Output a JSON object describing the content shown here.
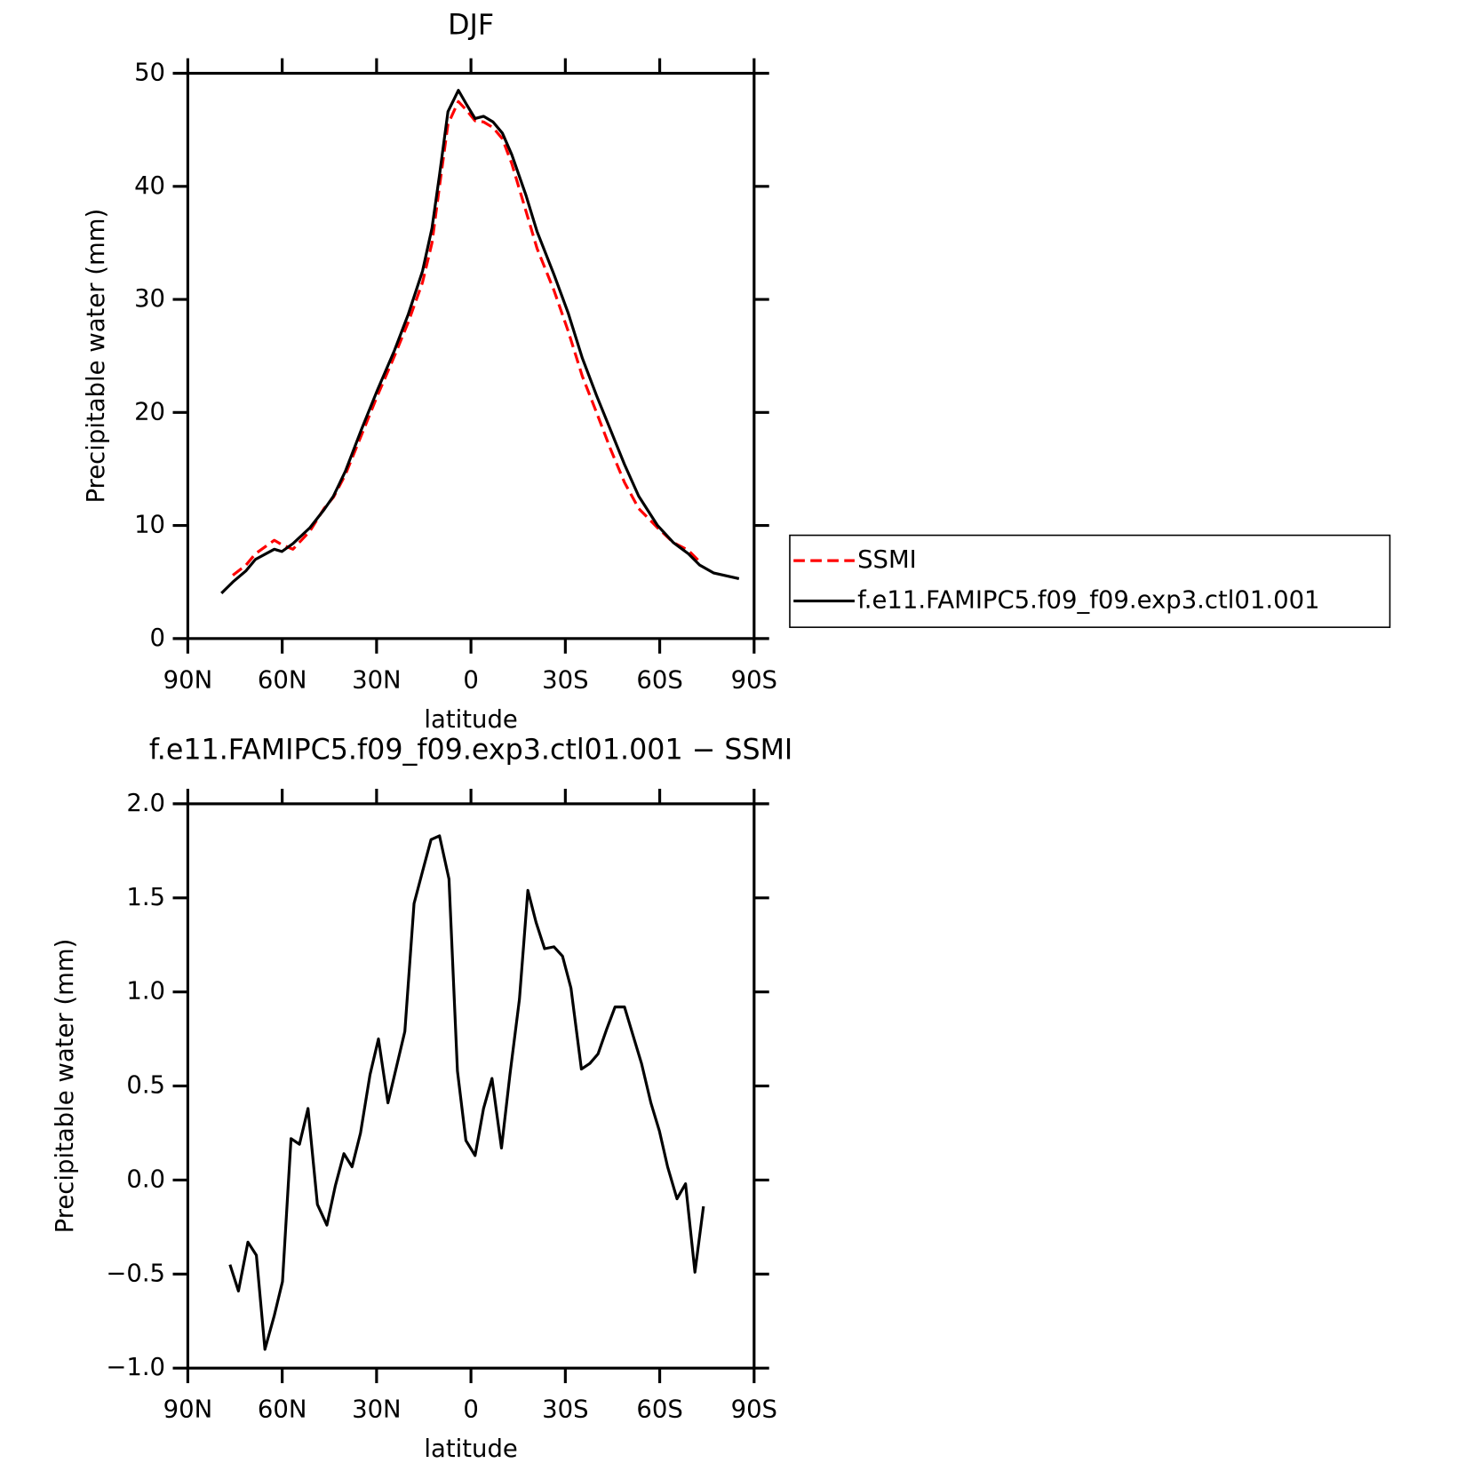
{
  "chart_data": [
    {
      "type": "line",
      "title": "DJF",
      "xlabel": "latitude",
      "ylabel": "Precipitable water (mm)",
      "x": [
        79.3,
        75.7,
        71.5,
        68.5,
        62.5,
        60.1,
        56.6,
        51.2,
        46.7,
        43.7,
        39.9,
        34.8,
        29.7,
        24.3,
        19.9,
        15.4,
        12.4,
        10.0,
        7.3,
        4.0,
        1.3,
        -1.3,
        -4.0,
        -7.0,
        -10.0,
        -13.0,
        -17.5,
        -21.0,
        -26.4,
        -30.9,
        -35.4,
        -39.9,
        -44.3,
        -48.8,
        -53.3,
        -59.3,
        -64.3,
        -69.1,
        -72.7,
        -77.2,
        -85.2
      ],
      "series": [
        {
          "name": "SSMI",
          "color": "#ff0000",
          "linestyle": "dashed",
          "values": [
            null,
            5.6,
            6.5,
            7.5,
            8.7,
            8.3,
            7.9,
            9.5,
            11.5,
            12.5,
            14.5,
            18.0,
            21.5,
            25.0,
            28.0,
            31.5,
            35.0,
            40.0,
            45.5,
            47.5,
            46.7,
            45.8,
            45.7,
            45.2,
            44.2,
            42.0,
            37.8,
            34.5,
            30.8,
            27.2,
            23.2,
            20.0,
            16.8,
            13.8,
            11.5,
            9.8,
            8.5,
            7.8,
            6.8,
            null,
            null
          ]
        },
        {
          "name": "f.e11.FAMIPC5.f09_f09.exp3.ctl01.001",
          "color": "#000000",
          "linestyle": "solid",
          "values": [
            4.0,
            5.0,
            6.0,
            7.0,
            7.9,
            7.7,
            8.4,
            9.8,
            11.4,
            12.6,
            14.8,
            18.5,
            22.0,
            25.5,
            28.7,
            32.5,
            36.3,
            41.0,
            46.6,
            48.5,
            47.2,
            46.0,
            46.2,
            45.7,
            44.7,
            42.8,
            39.2,
            36.0,
            32.2,
            28.8,
            24.8,
            21.5,
            18.5,
            15.4,
            12.6,
            10.0,
            8.5,
            7.5,
            6.5,
            5.8,
            5.3
          ]
        }
      ],
      "xlim": [
        90,
        -90
      ],
      "xticks": [
        {
          "value": 90,
          "label": "90N"
        },
        {
          "value": 60,
          "label": "60N"
        },
        {
          "value": 30,
          "label": "30N"
        },
        0,
        {
          "value": -30,
          "label": "30S"
        },
        {
          "value": -60,
          "label": "60S"
        },
        {
          "value": -90,
          "label": "90S"
        }
      ],
      "ylim": [
        0,
        50
      ],
      "yticks": [
        0,
        10,
        20,
        30,
        40,
        50
      ],
      "legend": "right"
    },
    {
      "type": "line",
      "title": "f.e11.FAMIPC5.f09_f09.exp3.ctl01.001 − SSMI",
      "xlabel": "latitude",
      "ylabel": "Precipitable water (mm)",
      "x": [
        76.6,
        73.9,
        70.9,
        68.2,
        65.5,
        62.5,
        59.9,
        57.2,
        54.5,
        51.8,
        48.8,
        45.8,
        43.1,
        40.4,
        37.8,
        35.1,
        32.1,
        29.4,
        26.4,
        23.7,
        21.0,
        18.1,
        15.4,
        12.7,
        10.0,
        7.0,
        4.3,
        1.6,
        -1.3,
        -4.0,
        -6.7,
        -9.7,
        -12.4,
        -15.4,
        -18.1,
        -20.7,
        -23.4,
        -26.4,
        -29.1,
        -31.8,
        -35.1,
        -37.8,
        -40.4,
        -43.1,
        -45.8,
        -48.8,
        -51.5,
        -54.2,
        -57.2,
        -59.9,
        -62.5,
        -65.5,
        -68.2,
        -71.2,
        -73.9
      ],
      "series": [
        {
          "color": "#000000",
          "linestyle": "solid",
          "values": [
            -0.45,
            -0.59,
            -0.33,
            -0.4,
            -0.9,
            -0.72,
            -0.54,
            0.22,
            0.19,
            0.38,
            -0.13,
            -0.24,
            -0.03,
            0.14,
            0.07,
            0.25,
            0.56,
            0.75,
            0.41,
            0.6,
            0.79,
            1.47,
            1.64,
            1.81,
            1.83,
            1.6,
            0.58,
            0.21,
            0.13,
            0.38,
            0.54,
            0.17,
            0.56,
            0.96,
            1.54,
            1.37,
            1.23,
            1.24,
            1.19,
            1.02,
            0.59,
            0.62,
            0.67,
            0.8,
            0.92,
            0.92,
            0.77,
            0.62,
            0.41,
            0.26,
            0.07,
            -0.1,
            -0.02,
            -0.49,
            -0.14
          ]
        }
      ],
      "xlim": [
        90,
        -90
      ],
      "xticks": [
        {
          "value": 90,
          "label": "90N"
        },
        {
          "value": 60,
          "label": "60N"
        },
        {
          "value": 30,
          "label": "30N"
        },
        0,
        {
          "value": -30,
          "label": "30S"
        },
        {
          "value": -60,
          "label": "60S"
        },
        {
          "value": -90,
          "label": "90S"
        }
      ],
      "ylim": [
        -1,
        2
      ],
      "yticks": [
        {
          "value": -1,
          "label": "−1.0"
        },
        {
          "value": -0.5,
          "label": "−0.5"
        },
        {
          "value": 0,
          "label": "0.0"
        },
        0.5,
        {
          "value": 1,
          "label": "1.0"
        },
        1.5,
        {
          "value": 2,
          "label": "2.0"
        }
      ]
    }
  ]
}
